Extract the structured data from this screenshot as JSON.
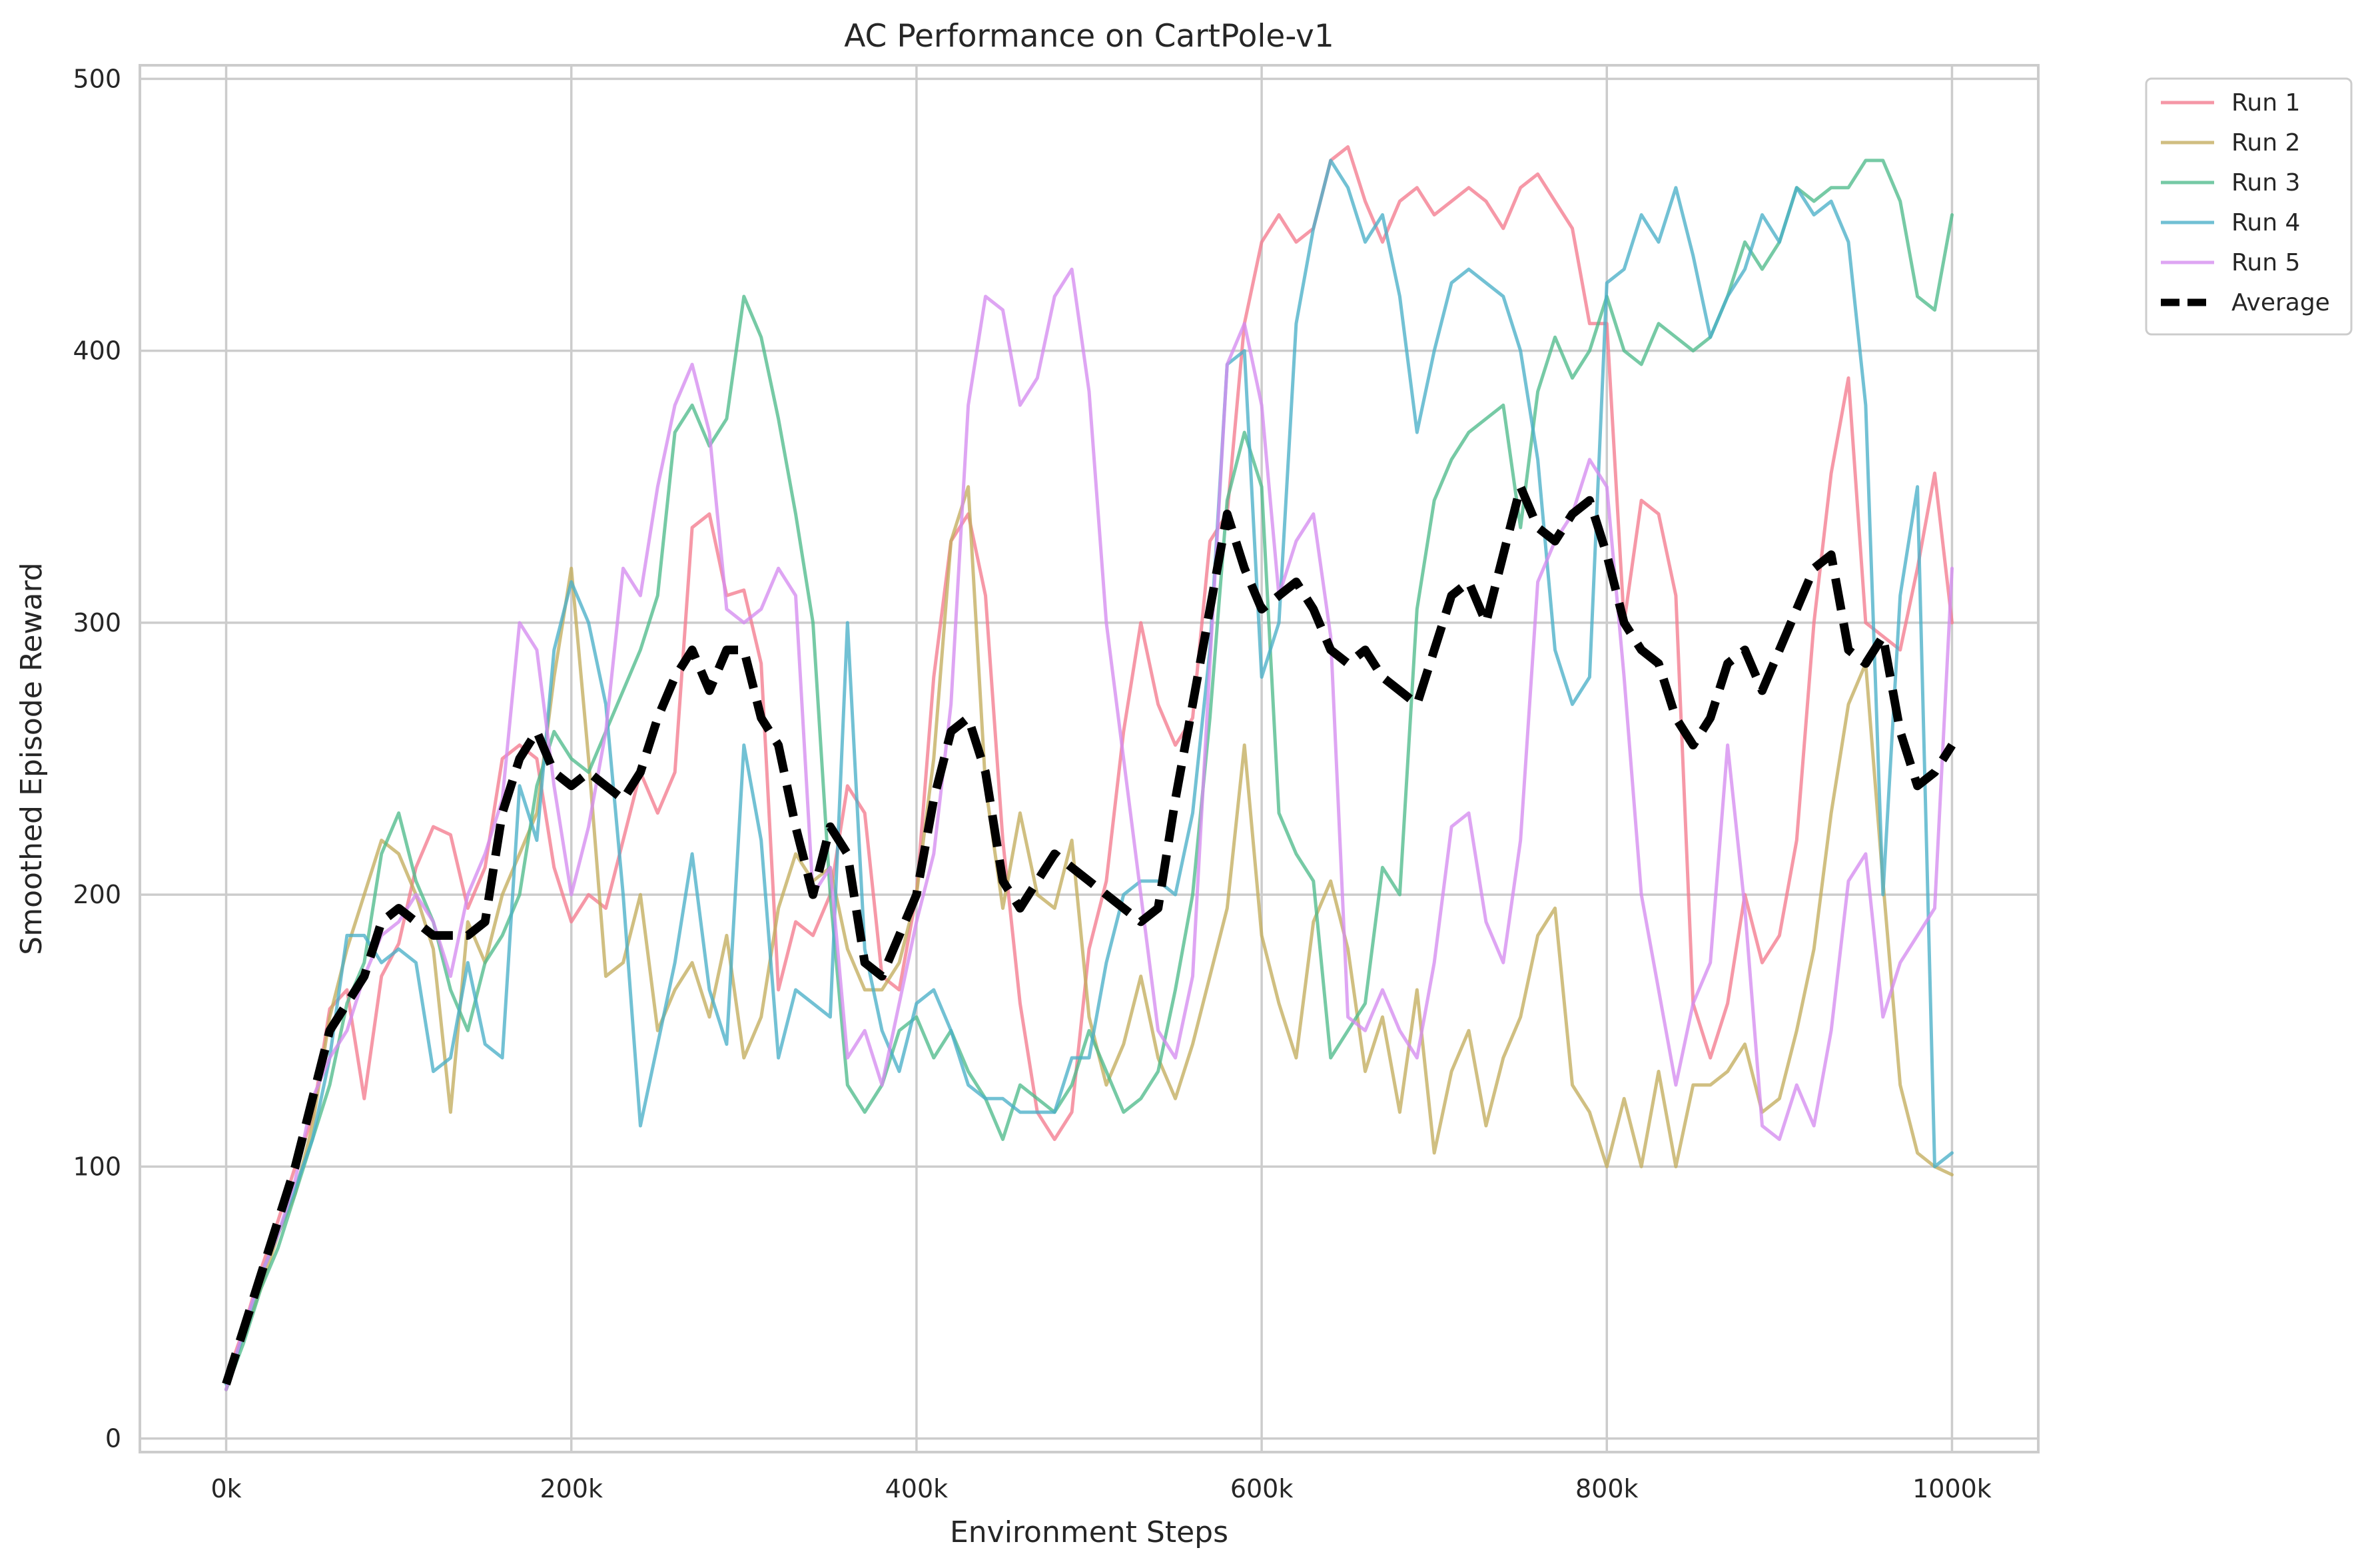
{
  "chart_data": {
    "type": "line",
    "title": "AC Performance on CartPole-v1",
    "xlabel": "Environment Steps",
    "ylabel": "Smoothed Episode Reward",
    "xlim": [
      -50000,
      1050000
    ],
    "ylim": [
      -5,
      505
    ],
    "x_ticks": [
      0,
      200000,
      400000,
      600000,
      800000,
      1000000
    ],
    "x_tick_labels": [
      "0k",
      "200k",
      "400k",
      "600k",
      "800k",
      "1000k"
    ],
    "y_ticks": [
      0,
      100,
      200,
      300,
      400,
      500
    ],
    "y_tick_labels": [
      "0",
      "100",
      "200",
      "300",
      "400",
      "500"
    ],
    "grid": true,
    "legend_position": "outside-top-right",
    "x": [
      0,
      10000,
      20000,
      30000,
      40000,
      50000,
      60000,
      70000,
      80000,
      90000,
      100000,
      110000,
      120000,
      130000,
      140000,
      150000,
      160000,
      170000,
      180000,
      190000,
      200000,
      210000,
      220000,
      230000,
      240000,
      250000,
      260000,
      270000,
      280000,
      290000,
      300000,
      310000,
      320000,
      330000,
      340000,
      350000,
      360000,
      370000,
      380000,
      390000,
      400000,
      410000,
      420000,
      430000,
      440000,
      450000,
      460000,
      470000,
      480000,
      490000,
      500000,
      510000,
      520000,
      530000,
      540000,
      550000,
      560000,
      570000,
      580000,
      590000,
      600000,
      610000,
      620000,
      630000,
      640000,
      650000,
      660000,
      670000,
      680000,
      690000,
      700000,
      710000,
      720000,
      730000,
      740000,
      750000,
      760000,
      770000,
      780000,
      790000,
      800000,
      810000,
      820000,
      830000,
      840000,
      850000,
      860000,
      870000,
      880000,
      890000,
      900000,
      910000,
      920000,
      930000,
      940000,
      950000,
      960000,
      970000,
      980000,
      990000,
      1000000
    ],
    "series": [
      {
        "name": "Run 1",
        "color": "#f37b8e",
        "style": "solid",
        "values": [
          22,
          40,
          62,
          80,
          100,
          118,
          158,
          165,
          125,
          170,
          182,
          210,
          225,
          222,
          195,
          210,
          250,
          255,
          250,
          210,
          190,
          200,
          195,
          220,
          245,
          230,
          245,
          335,
          340,
          310,
          312,
          285,
          165,
          190,
          185,
          200,
          240,
          230,
          170,
          165,
          200,
          280,
          330,
          340,
          310,
          220,
          160,
          120,
          110,
          120,
          180,
          205,
          260,
          300,
          270,
          255,
          265,
          330,
          340,
          410,
          440,
          450,
          440,
          445,
          470,
          475,
          455,
          440,
          455,
          460,
          450,
          455,
          460,
          455,
          445,
          460,
          465,
          455,
          445,
          410,
          410,
          300,
          345,
          340,
          310,
          160,
          140,
          160,
          200,
          175,
          185,
          220,
          300,
          355,
          390,
          300,
          295,
          290,
          320,
          355,
          300
        ]
      },
      {
        "name": "Run 2",
        "color": "#c3ad5e",
        "style": "solid",
        "values": [
          18,
          38,
          55,
          75,
          90,
          115,
          155,
          180,
          200,
          220,
          215,
          200,
          180,
          120,
          190,
          175,
          200,
          215,
          230,
          280,
          320,
          250,
          170,
          175,
          200,
          150,
          165,
          175,
          155,
          185,
          140,
          155,
          195,
          215,
          205,
          210,
          180,
          165,
          165,
          175,
          200,
          250,
          330,
          350,
          240,
          195,
          230,
          200,
          195,
          220,
          155,
          130,
          145,
          170,
          140,
          125,
          145,
          170,
          195,
          255,
          185,
          160,
          140,
          190,
          205,
          180,
          135,
          155,
          120,
          165,
          105,
          135,
          150,
          115,
          140,
          155,
          185,
          195,
          130,
          120,
          100,
          125,
          100,
          135,
          100,
          130,
          130,
          135,
          145,
          120,
          125,
          150,
          180,
          230,
          270,
          285,
          205,
          130,
          105,
          100,
          97
        ]
      },
      {
        "name": "Run 3",
        "color": "#4fbb8c",
        "style": "solid",
        "values": [
          18,
          35,
          55,
          70,
          90,
          110,
          130,
          160,
          175,
          215,
          230,
          205,
          190,
          165,
          150,
          175,
          185,
          200,
          240,
          260,
          250,
          245,
          260,
          275,
          290,
          310,
          370,
          380,
          365,
          375,
          420,
          405,
          375,
          340,
          300,
          200,
          130,
          120,
          130,
          150,
          155,
          140,
          150,
          135,
          125,
          110,
          130,
          125,
          120,
          130,
          150,
          135,
          120,
          125,
          135,
          165,
          200,
          265,
          345,
          370,
          350,
          230,
          215,
          205,
          140,
          150,
          160,
          210,
          200,
          305,
          345,
          360,
          370,
          375,
          380,
          335,
          385,
          405,
          390,
          400,
          420,
          400,
          395,
          410,
          405,
          400,
          405,
          420,
          440,
          430,
          440,
          460,
          455,
          460,
          460,
          470,
          470,
          455,
          420,
          415,
          450
        ]
      },
      {
        "name": "Run 4",
        "color": "#4aafc8",
        "style": "solid",
        "values": [
          20,
          38,
          60,
          75,
          92,
          110,
          140,
          185,
          185,
          175,
          180,
          175,
          135,
          140,
          175,
          145,
          140,
          240,
          220,
          290,
          315,
          300,
          270,
          200,
          115,
          145,
          175,
          215,
          165,
          145,
          255,
          220,
          140,
          165,
          160,
          155,
          300,
          180,
          150,
          135,
          160,
          165,
          150,
          130,
          125,
          125,
          120,
          120,
          120,
          140,
          140,
          175,
          200,
          205,
          205,
          200,
          230,
          290,
          395,
          400,
          280,
          300,
          410,
          445,
          470,
          460,
          440,
          450,
          420,
          370,
          400,
          425,
          430,
          425,
          420,
          400,
          360,
          290,
          270,
          280,
          425,
          430,
          450,
          440,
          460,
          435,
          405,
          420,
          430,
          450,
          440,
          460,
          450,
          455,
          440,
          380,
          200,
          310,
          350,
          100,
          105
        ]
      },
      {
        "name": "Run 5",
        "color": "#d58cf0",
        "style": "solid",
        "values": [
          18,
          40,
          60,
          75,
          95,
          125,
          140,
          150,
          170,
          185,
          190,
          200,
          190,
          170,
          200,
          215,
          235,
          300,
          290,
          240,
          200,
          225,
          260,
          320,
          310,
          350,
          380,
          395,
          370,
          305,
          300,
          305,
          320,
          310,
          200,
          210,
          140,
          150,
          130,
          160,
          190,
          215,
          270,
          380,
          420,
          415,
          380,
          390,
          420,
          430,
          385,
          300,
          250,
          200,
          150,
          140,
          170,
          285,
          395,
          410,
          380,
          310,
          330,
          340,
          295,
          155,
          150,
          165,
          150,
          140,
          175,
          225,
          230,
          190,
          175,
          220,
          315,
          330,
          340,
          360,
          350,
          280,
          200,
          165,
          130,
          160,
          175,
          255,
          195,
          115,
          110,
          130,
          115,
          150,
          205,
          215,
          155,
          175,
          185,
          195,
          320
        ]
      },
      {
        "name": "Average",
        "color": "#000000",
        "style": "dashed",
        "values": [
          20,
          40,
          60,
          80,
          100,
          125,
          150,
          160,
          170,
          190,
          195,
          190,
          185,
          185,
          185,
          190,
          230,
          250,
          260,
          245,
          240,
          245,
          240,
          235,
          245,
          265,
          280,
          290,
          275,
          290,
          290,
          265,
          255,
          225,
          200,
          225,
          215,
          175,
          170,
          185,
          200,
          235,
          260,
          265,
          245,
          205,
          195,
          205,
          215,
          210,
          205,
          200,
          195,
          190,
          195,
          235,
          270,
          305,
          340,
          320,
          305,
          310,
          315,
          305,
          290,
          285,
          290,
          280,
          275,
          270,
          290,
          310,
          315,
          300,
          325,
          350,
          335,
          330,
          340,
          345,
          325,
          300,
          290,
          285,
          265,
          255,
          265,
          285,
          290,
          275,
          290,
          305,
          320,
          325,
          290,
          285,
          295,
          260,
          240,
          245,
          255
        ]
      }
    ]
  }
}
